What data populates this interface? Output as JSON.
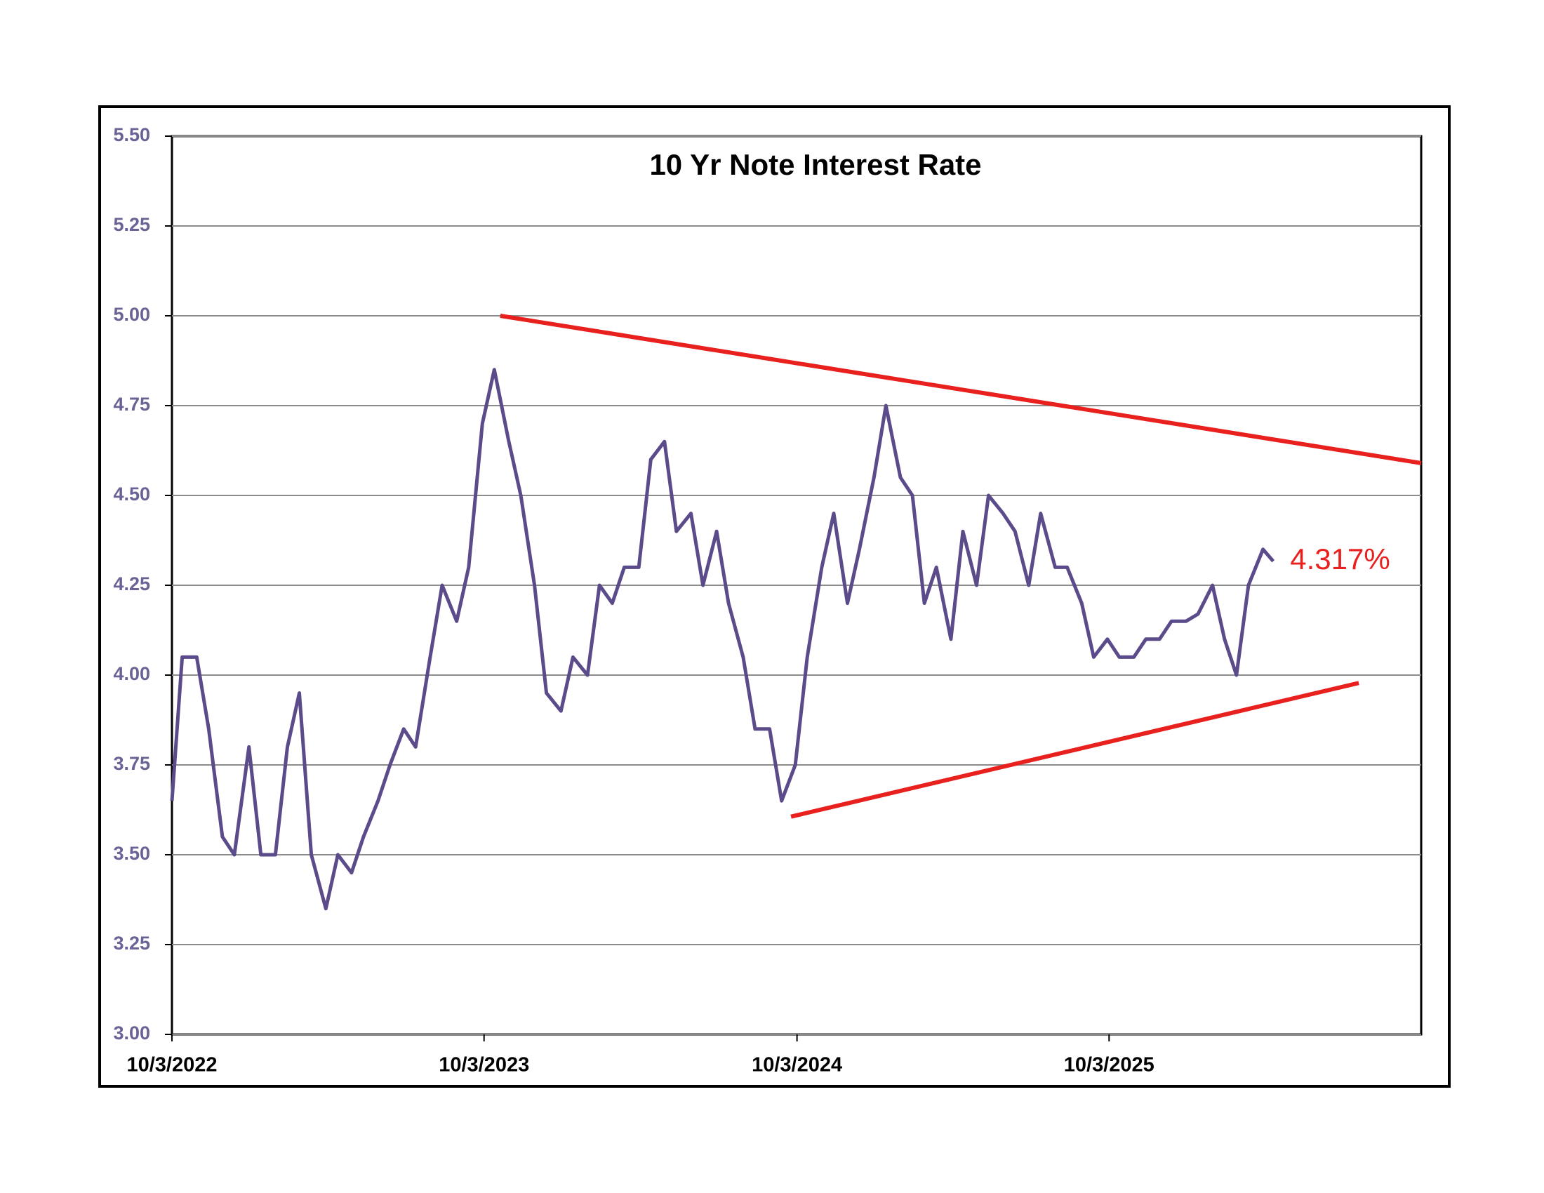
{
  "chart_data": {
    "type": "line",
    "title": "10 Yr Note Interest Rate",
    "x": [
      "10/3/2022",
      "10/15/2022",
      "11/1/2022",
      "11/15/2022",
      "12/1/2022",
      "12/15/2022",
      "1/1/2023",
      "1/15/2023",
      "2/1/2023",
      "2/15/2023",
      "3/1/2023",
      "3/15/2023",
      "4/1/2023",
      "4/15/2023",
      "5/1/2023",
      "5/15/2023",
      "6/1/2023",
      "6/15/2023",
      "7/1/2023",
      "7/15/2023",
      "8/1/2023",
      "8/15/2023",
      "9/1/2023",
      "9/15/2023",
      "10/1/2023",
      "10/15/2023",
      "11/1/2023",
      "11/15/2023",
      "12/1/2023",
      "12/15/2023",
      "1/1/2024",
      "1/15/2024",
      "2/1/2024",
      "2/15/2024",
      "3/1/2024",
      "3/15/2024",
      "4/1/2024",
      "4/15/2024",
      "5/1/2024",
      "5/15/2024",
      "6/1/2024",
      "6/15/2024",
      "7/1/2024",
      "7/15/2024",
      "8/1/2024",
      "8/15/2024",
      "9/1/2024",
      "9/15/2024",
      "10/1/2024",
      "10/15/2024",
      "11/1/2024",
      "11/15/2024",
      "12/1/2024",
      "12/15/2024",
      "1/1/2025",
      "1/15/2025",
      "2/1/2025",
      "2/15/2025",
      "3/1/2025",
      "3/15/2025",
      "4/1/2025",
      "4/15/2025",
      "5/1/2025",
      "5/15/2025",
      "6/1/2025",
      "6/15/2025",
      "7/1/2025",
      "7/15/2025",
      "8/1/2025",
      "8/15/2025",
      "9/1/2025",
      "9/15/2025",
      "10/1/2025",
      "10/15/2025",
      "11/1/2025",
      "11/15/2025",
      "12/1/2025",
      "12/15/2025",
      "1/1/2026",
      "1/15/2026",
      "2/1/2026",
      "2/15/2026",
      "3/1/2026",
      "3/15/2026",
      "4/1/2026",
      "4/13/2026"
    ],
    "series": [
      {
        "name": "10 Yr Note",
        "color": "#5b4b8a",
        "values": [
          3.65,
          4.05,
          4.05,
          3.85,
          3.55,
          3.5,
          3.8,
          3.5,
          3.5,
          3.8,
          3.95,
          3.5,
          3.35,
          3.5,
          3.45,
          3.55,
          3.65,
          3.75,
          3.85,
          3.8,
          4.05,
          4.25,
          4.15,
          4.3,
          4.7,
          4.85,
          4.65,
          4.5,
          4.25,
          3.95,
          3.9,
          4.05,
          4.0,
          4.25,
          4.2,
          4.3,
          4.3,
          4.6,
          4.65,
          4.4,
          4.45,
          4.25,
          4.4,
          4.2,
          4.05,
          3.85,
          3.85,
          3.65,
          3.75,
          4.05,
          4.3,
          4.45,
          4.2,
          4.35,
          4.55,
          4.75,
          4.55,
          4.5,
          4.2,
          4.3,
          4.1,
          4.4,
          4.25,
          4.5,
          4.45,
          4.4,
          4.25,
          4.45,
          4.3,
          4.3,
          4.2,
          4.05,
          4.1,
          4.05,
          4.05,
          4.1,
          4.1,
          4.15,
          4.15,
          4.17,
          4.25,
          4.1,
          4.0,
          4.25,
          4.35,
          4.317
        ]
      }
    ],
    "annotation": "4.317%",
    "trendlines": [
      {
        "color": "#e8201e",
        "x": [
          "10/22/2023",
          "10/3/2026"
        ],
        "y": [
          5.0,
          4.59
        ]
      },
      {
        "color": "#e8201e",
        "x": [
          "9/26/2024",
          "7/22/2026"
        ],
        "y": [
          3.606,
          3.978
        ]
      }
    ],
    "xlim": [
      "10/3/2022",
      "10/3/2026"
    ],
    "xticks": [
      "10/3/2022",
      "10/3/2023",
      "10/3/2024",
      "10/3/2025"
    ],
    "ylim": [
      3.0,
      5.5
    ],
    "yticks": [
      {
        "value": 3.0,
        "label": "3.00"
      },
      {
        "value": 3.25,
        "label": "3.25"
      },
      {
        "value": 3.5,
        "label": "3.50"
      },
      {
        "value": 3.75,
        "label": "3.75"
      },
      {
        "value": 4.0,
        "label": "4.00"
      },
      {
        "value": 4.25,
        "label": "4.25"
      },
      {
        "value": 4.5,
        "label": "4.50"
      },
      {
        "value": 4.75,
        "label": "4.75"
      },
      {
        "value": 5.0,
        "label": "5.00"
      },
      {
        "value": 5.25,
        "label": "5.25"
      },
      {
        "value": 5.5,
        "label": "5.50"
      }
    ],
    "grid": true
  }
}
